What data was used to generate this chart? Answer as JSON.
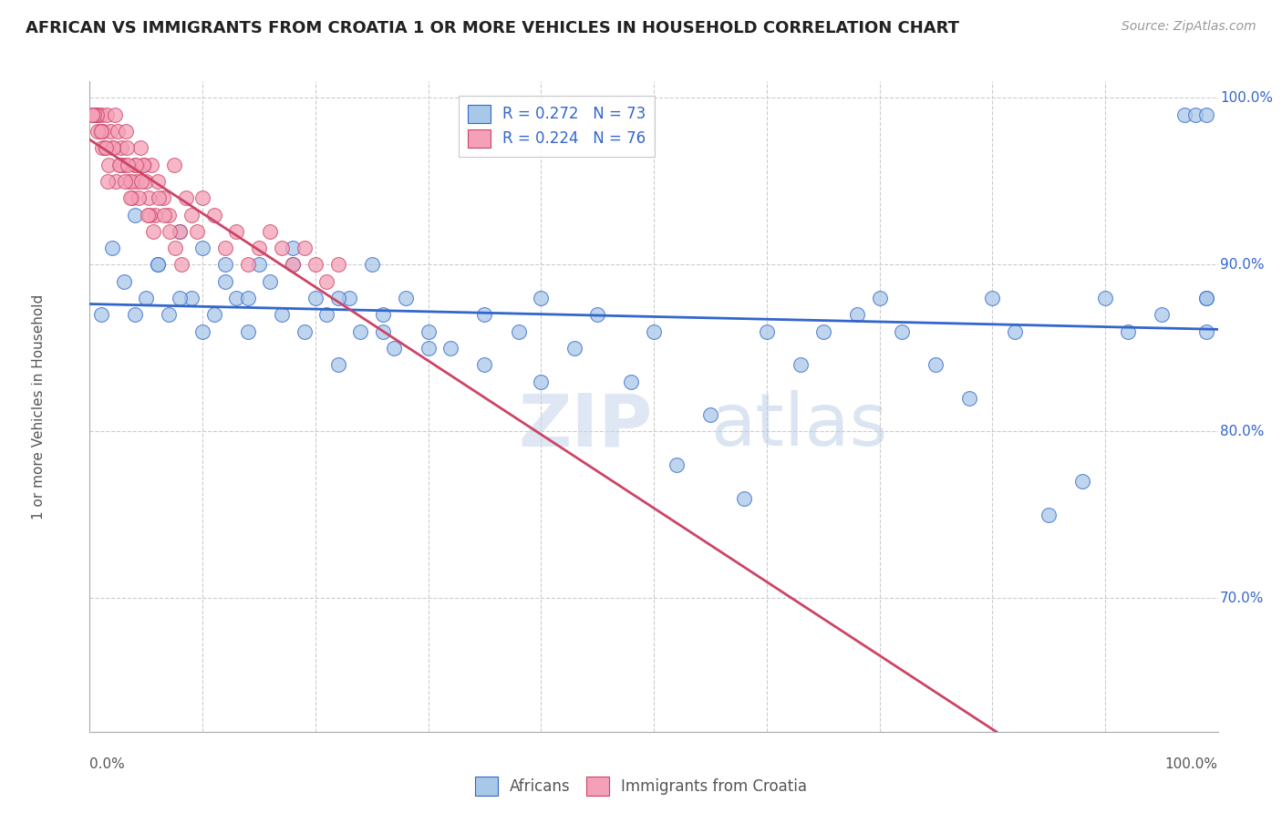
{
  "title": "AFRICAN VS IMMIGRANTS FROM CROATIA 1 OR MORE VEHICLES IN HOUSEHOLD CORRELATION CHART",
  "source": "Source: ZipAtlas.com",
  "ylabel": "1 or more Vehicles in Household",
  "legend_label1": "Africans",
  "legend_label2": "Immigrants from Croatia",
  "R1": 0.272,
  "N1": 73,
  "R2": 0.224,
  "N2": 76,
  "blue_color": "#a8c8e8",
  "pink_color": "#f4a0b8",
  "blue_line_color": "#3366cc",
  "pink_line_color": "#cc4466",
  "watermark_zip": "ZIP",
  "watermark_atlas": "atlas",
  "xlim": [
    0,
    100
  ],
  "ylim": [
    62,
    101
  ],
  "yticks": [
    70,
    80,
    90,
    100
  ],
  "ytick_labels": [
    "70.0%",
    "80.0%",
    "90.0%",
    "100.0%"
  ],
  "africans_x": [
    1,
    2,
    3,
    4,
    5,
    6,
    7,
    8,
    9,
    10,
    11,
    12,
    13,
    14,
    15,
    16,
    17,
    18,
    19,
    20,
    21,
    22,
    23,
    24,
    25,
    26,
    27,
    28,
    30,
    32,
    35,
    38,
    40,
    43,
    45,
    48,
    50,
    52,
    55,
    58,
    60,
    63,
    65,
    68,
    70,
    72,
    75,
    78,
    80,
    82,
    85,
    88,
    90,
    92,
    95,
    97,
    98,
    99,
    99,
    99,
    99,
    4,
    6,
    8,
    10,
    12,
    14,
    18,
    22,
    26,
    30,
    35,
    40
  ],
  "africans_y": [
    87,
    91,
    89,
    93,
    88,
    90,
    87,
    92,
    88,
    91,
    87,
    90,
    88,
    86,
    90,
    89,
    87,
    91,
    86,
    88,
    87,
    84,
    88,
    86,
    90,
    87,
    85,
    88,
    86,
    85,
    87,
    86,
    88,
    85,
    87,
    83,
    86,
    78,
    81,
    76,
    86,
    84,
    86,
    87,
    88,
    86,
    84,
    82,
    88,
    86,
    75,
    77,
    88,
    86,
    87,
    99,
    99,
    99,
    88,
    86,
    88,
    87,
    90,
    88,
    86,
    89,
    88,
    90,
    88,
    86,
    85,
    84,
    83
  ],
  "croatia_x": [
    0.5,
    0.8,
    1.0,
    1.2,
    1.5,
    1.8,
    2.0,
    2.2,
    2.5,
    2.8,
    3.0,
    3.2,
    3.5,
    3.8,
    4.0,
    4.2,
    4.5,
    4.8,
    5.0,
    5.2,
    5.5,
    5.8,
    6.0,
    6.5,
    7.0,
    7.5,
    8.0,
    8.5,
    9.0,
    9.5,
    10.0,
    11.0,
    12.0,
    13.0,
    14.0,
    15.0,
    16.0,
    17.0,
    18.0,
    19.0,
    20.0,
    21.0,
    22.0,
    0.3,
    0.6,
    0.9,
    1.3,
    1.7,
    2.3,
    2.7,
    3.3,
    3.7,
    4.3,
    4.7,
    5.3,
    0.4,
    0.7,
    1.1,
    1.6,
    2.1,
    2.6,
    3.1,
    3.6,
    4.1,
    4.6,
    5.1,
    5.6,
    6.1,
    6.6,
    7.1,
    7.6,
    8.1,
    0.2,
    1.4,
    3.4,
    1
  ],
  "croatia_y": [
    99,
    99,
    99,
    98,
    99,
    98,
    97,
    99,
    98,
    97,
    96,
    98,
    95,
    94,
    96,
    95,
    97,
    96,
    95,
    94,
    96,
    93,
    95,
    94,
    93,
    96,
    92,
    94,
    93,
    92,
    94,
    93,
    91,
    92,
    90,
    91,
    92,
    91,
    90,
    91,
    90,
    89,
    90,
    99,
    99,
    98,
    97,
    96,
    95,
    96,
    97,
    95,
    94,
    96,
    93,
    99,
    98,
    97,
    95,
    97,
    96,
    95,
    94,
    96,
    95,
    93,
    92,
    94,
    93,
    92,
    91,
    90,
    99,
    97,
    96,
    98
  ],
  "title_fontsize": 13,
  "source_fontsize": 10,
  "tick_label_fontsize": 11,
  "legend_fontsize": 12,
  "ylabel_fontsize": 11
}
